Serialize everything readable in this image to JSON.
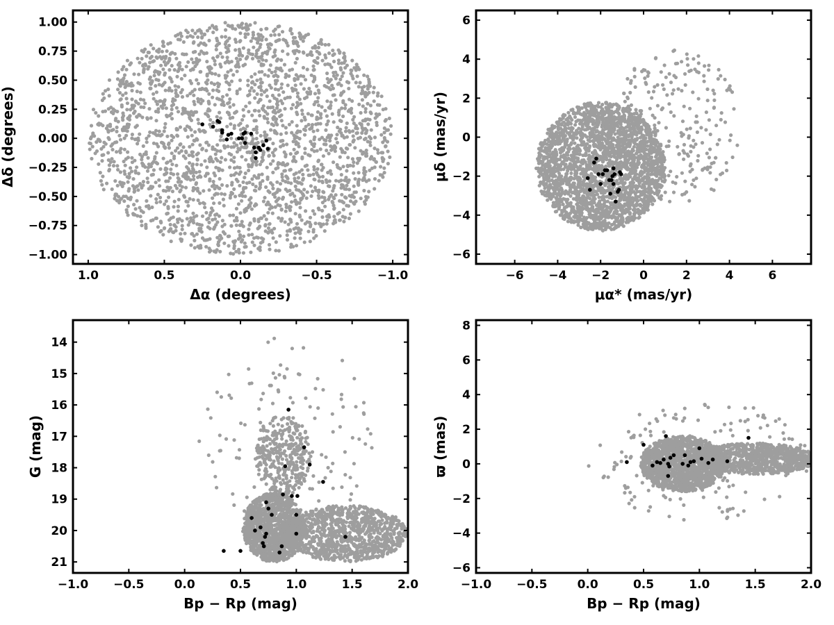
{
  "chart_data": [
    {
      "type": "scatter",
      "xlabel": "Δα (degrees)",
      "ylabel": "Δδ (degrees)",
      "xlim": [
        1.1,
        -1.1
      ],
      "ylim": [
        -1.08,
        1.1
      ],
      "x_ticks": [
        1.0,
        0.5,
        0.0,
        -0.5,
        -1.0
      ],
      "x_tick_labels": [
        "1.0",
        "0.5",
        "0.0",
        "−0.5",
        "−1.0"
      ],
      "y_ticks": [
        1.0,
        0.75,
        0.5,
        0.25,
        0.0,
        -0.25,
        -0.5,
        -0.75,
        -1.0
      ],
      "y_tick_labels": [
        "1.00",
        "0.75",
        "0.50",
        "0.25",
        "0.00",
        "−0.25",
        "−0.50",
        "−0.75",
        "−1.00"
      ],
      "series": [
        {
          "color": "#9e9e9e",
          "field": {
            "shape": "disk",
            "center": [
              0,
              0
            ],
            "rx": 1.0,
            "ry": 1.0,
            "count": 2400
          }
        },
        {
          "color": "#000000",
          "points": [
            [
              0.25,
              0.12
            ],
            [
              0.18,
              0.1
            ],
            [
              0.15,
              0.15
            ],
            [
              0.14,
              0.14
            ],
            [
              0.12,
              0.07
            ],
            [
              0.12,
              0.05
            ],
            [
              0.09,
              -0.01
            ],
            [
              0.08,
              0.03
            ],
            [
              0.06,
              0.04
            ],
            [
              0.01,
              0.0
            ],
            [
              -0.01,
              0.0
            ],
            [
              -0.02,
              0.04
            ],
            [
              -0.03,
              0.05
            ],
            [
              -0.03,
              -0.04
            ],
            [
              -0.07,
              0.04
            ],
            [
              -0.09,
              -0.08
            ],
            [
              -0.1,
              -0.12
            ],
            [
              -0.1,
              -0.17
            ],
            [
              -0.12,
              -0.08
            ],
            [
              -0.13,
              -0.1
            ],
            [
              -0.15,
              -0.06
            ],
            [
              -0.17,
              -0.02
            ],
            [
              -0.18,
              -0.09
            ]
          ]
        }
      ]
    },
    {
      "type": "scatter",
      "xlabel": "μα* (mas/yr)",
      "ylabel": "μδ (mas/yr)",
      "xlim": [
        -7.8,
        7.8
      ],
      "ylim": [
        -6.5,
        6.5
      ],
      "x_ticks": [
        -6,
        -4,
        -2,
        0,
        2,
        4,
        6
      ],
      "x_tick_labels": [
        "−6",
        "−4",
        "−2",
        "0",
        "2",
        "4",
        "6"
      ],
      "y_ticks": [
        -6,
        -4,
        -2,
        0,
        2,
        4,
        6
      ],
      "y_tick_labels": [
        "−6",
        "−4",
        "−2",
        "0",
        "2",
        "4",
        "6"
      ],
      "series": [
        {
          "color": "#9e9e9e",
          "field": {
            "shape": "disk",
            "center": [
              -2.0,
              -1.5
            ],
            "rx": 3.0,
            "ry": 3.3,
            "count": 2600
          }
        },
        {
          "color": "#9e9e9e",
          "field": {
            "shape": "disk",
            "center": [
              1.5,
              0.5
            ],
            "rx": 3.0,
            "ry": 4.0,
            "count": 260
          }
        },
        {
          "color": "#000000",
          "points": [
            [
              -2.6,
              -2.1
            ],
            [
              -2.5,
              -2.7
            ],
            [
              -2.3,
              -1.3
            ],
            [
              -2.2,
              -1.1
            ],
            [
              -2.1,
              -1.9
            ],
            [
              -2.0,
              -2.4
            ],
            [
              -1.9,
              -1.9
            ],
            [
              -1.8,
              -1.7
            ],
            [
              -1.7,
              -1.7
            ],
            [
              -1.6,
              -2.2
            ],
            [
              -1.55,
              -2.9
            ],
            [
              -1.5,
              -2.2
            ],
            [
              -1.45,
              -2.0
            ],
            [
              -1.4,
              -2.4
            ],
            [
              -1.4,
              -1.6
            ],
            [
              -1.35,
              -1.9
            ],
            [
              -1.3,
              -3.3
            ],
            [
              -1.2,
              -2.8
            ],
            [
              -1.15,
              -2.7
            ],
            [
              -1.1,
              -1.8
            ],
            [
              -1.05,
              -1.9
            ]
          ]
        }
      ]
    },
    {
      "type": "scatter",
      "xlabel": "Bp − Rp (mag)",
      "ylabel": "G (mag)",
      "xlim": [
        -1.0,
        2.0
      ],
      "ylim": [
        21.35,
        13.3
      ],
      "x_ticks": [
        -1.0,
        -0.5,
        0.0,
        0.5,
        1.0,
        1.5,
        2.0
      ],
      "x_tick_labels": [
        "−1.0",
        "−0.5",
        "0.0",
        "0.5",
        "1.0",
        "1.5",
        "2.0"
      ],
      "y_ticks": [
        21,
        20,
        19,
        18,
        17,
        16,
        15,
        14
      ],
      "y_tick_labels": [
        "21",
        "20",
        "19",
        "18",
        "17",
        "16",
        "15",
        "14"
      ],
      "series": [
        {
          "color": "#9e9e9e",
          "field": {
            "shape": "disk",
            "center": [
              0.8,
              19.9
            ],
            "rx": 0.28,
            "ry": 1.1,
            "count": 1300
          }
        },
        {
          "color": "#9e9e9e",
          "field": {
            "shape": "disk",
            "center": [
              1.45,
              20.1
            ],
            "rx": 0.55,
            "ry": 0.9,
            "count": 1000
          }
        },
        {
          "color": "#9e9e9e",
          "field": {
            "shape": "disk",
            "center": [
              0.88,
              17.6
            ],
            "rx": 0.25,
            "ry": 1.3,
            "count": 350
          }
        },
        {
          "color": "#9e9e9e",
          "field": {
            "shape": "disk",
            "center": [
              0.9,
              17.0
            ],
            "rx": 0.8,
            "ry": 3.2,
            "count": 130
          }
        },
        {
          "color": "#000000",
          "points": [
            [
              0.35,
              20.65
            ],
            [
              0.5,
              20.65
            ],
            [
              0.6,
              19.6
            ],
            [
              0.63,
              20.0
            ],
            [
              0.68,
              19.9
            ],
            [
              0.7,
              20.4
            ],
            [
              0.71,
              20.5
            ],
            [
              0.72,
              20.2
            ],
            [
              0.73,
              20.1
            ],
            [
              0.73,
              19.1
            ],
            [
              0.75,
              19.3
            ],
            [
              0.78,
              19.5
            ],
            [
              0.85,
              20.7
            ],
            [
              0.87,
              20.5
            ],
            [
              0.88,
              18.85
            ],
            [
              0.9,
              17.95
            ],
            [
              0.93,
              16.15
            ],
            [
              0.96,
              18.9
            ],
            [
              1.0,
              20.1
            ],
            [
              1.01,
              18.9
            ],
            [
              1.0,
              19.5
            ],
            [
              1.07,
              17.35
            ],
            [
              1.12,
              17.9
            ],
            [
              1.24,
              18.45
            ],
            [
              1.44,
              20.2
            ]
          ]
        }
      ]
    },
    {
      "type": "scatter",
      "xlabel": "Bp − Rp (mag)",
      "ylabel": "ϖ (mas)",
      "xlim": [
        -1.0,
        2.0
      ],
      "ylim": [
        -6.3,
        8.3
      ],
      "x_ticks": [
        -1.0,
        -0.5,
        0.0,
        0.5,
        1.0,
        1.5,
        2.0
      ],
      "x_tick_labels": [
        "−1.0",
        "−0.5",
        "0.0",
        "0.5",
        "1.0",
        "1.5",
        "2.0"
      ],
      "y_ticks": [
        -6,
        -4,
        -2,
        0,
        2,
        4,
        6,
        8
      ],
      "y_tick_labels": [
        "−6",
        "−4",
        "−2",
        "0",
        "2",
        "4",
        "6",
        "8"
      ],
      "series": [
        {
          "color": "#9e9e9e",
          "field": {
            "shape": "disk",
            "center": [
              0.85,
              0.0
            ],
            "rx": 0.38,
            "ry": 1.6,
            "count": 1500
          }
        },
        {
          "color": "#9e9e9e",
          "field": {
            "shape": "disk",
            "center": [
              1.5,
              0.3
            ],
            "rx": 0.55,
            "ry": 0.9,
            "count": 900
          }
        },
        {
          "color": "#9e9e9e",
          "field": {
            "shape": "disk",
            "center": [
              1.0,
              0.2
            ],
            "rx": 1.0,
            "ry": 3.5,
            "count": 180
          }
        },
        {
          "color": "#000000",
          "points": [
            [
              0.35,
              0.1
            ],
            [
              0.5,
              1.1
            ],
            [
              0.58,
              -0.1
            ],
            [
              0.62,
              0.1
            ],
            [
              0.65,
              0.05
            ],
            [
              0.68,
              0.25
            ],
            [
              0.7,
              1.6
            ],
            [
              0.72,
              0.0
            ],
            [
              0.72,
              -0.7
            ],
            [
              0.73,
              -0.15
            ],
            [
              0.74,
              0.35
            ],
            [
              0.77,
              0.5
            ],
            [
              0.85,
              0.0
            ],
            [
              0.87,
              0.5
            ],
            [
              0.9,
              -0.1
            ],
            [
              0.92,
              0.1
            ],
            [
              0.95,
              0.15
            ],
            [
              1.0,
              0.9
            ],
            [
              1.02,
              0.3
            ],
            [
              1.08,
              0.05
            ],
            [
              1.12,
              0.25
            ],
            [
              1.25,
              0.15
            ],
            [
              1.44,
              1.5
            ]
          ]
        }
      ]
    }
  ]
}
